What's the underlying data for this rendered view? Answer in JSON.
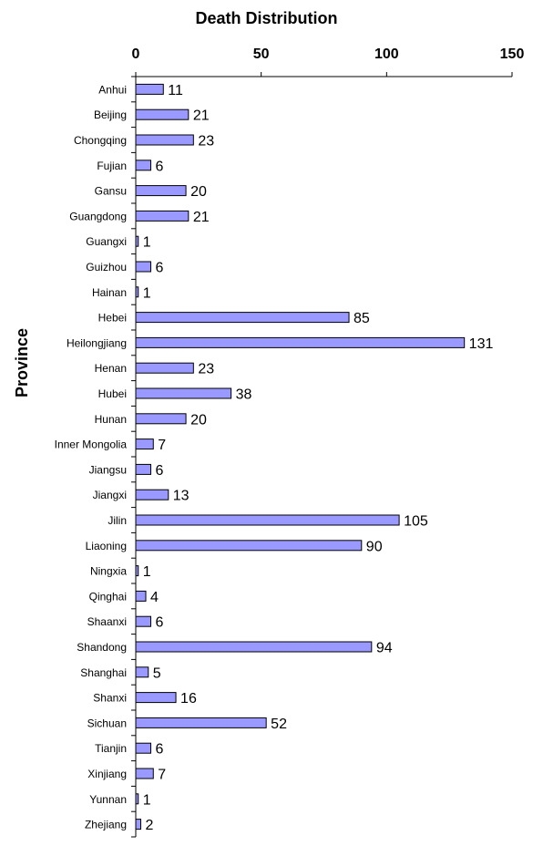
{
  "chart_data": {
    "type": "bar",
    "orientation": "horizontal",
    "title": "Death Distribution",
    "xlabel": "",
    "ylabel": "Province",
    "xlim": [
      0,
      150
    ],
    "xticks": [
      0,
      50,
      100,
      150
    ],
    "x_axis_position": "top",
    "grid": false,
    "legend": "none",
    "bar_color": "#9999ff",
    "categories": [
      "Anhui",
      "Beijing",
      "Chongqing",
      "Fujian",
      "Gansu",
      "Guangdong",
      "Guangxi",
      "Guizhou",
      "Hainan",
      "Hebei",
      "Heilongjiang",
      "Henan",
      "Hubei",
      "Hunan",
      "Inner Mongolia",
      "Jiangsu",
      "Jiangxi",
      "Jilin",
      "Liaoning",
      "Ningxia",
      "Qinghai",
      "Shaanxi",
      "Shandong",
      "Shanghai",
      "Shanxi",
      "Sichuan",
      "Tianjin",
      "Xinjiang",
      "Yunnan",
      "Zhejiang"
    ],
    "values": [
      11,
      21,
      23,
      6,
      20,
      21,
      1,
      6,
      1,
      85,
      131,
      23,
      38,
      20,
      7,
      6,
      13,
      105,
      90,
      1,
      4,
      6,
      94,
      5,
      16,
      52,
      6,
      7,
      1,
      2
    ]
  }
}
